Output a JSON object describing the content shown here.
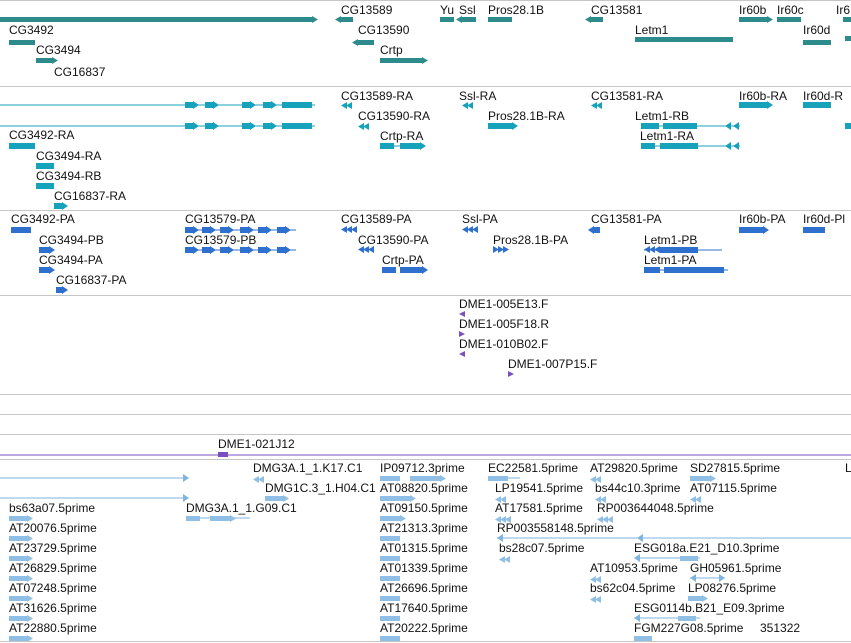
{
  "colors": {
    "gene": "#2e8b8b",
    "transcript": "#17a2bb",
    "protein": "#2f6fce",
    "est": "#7a4fc0",
    "cdna": "#8fbfe4",
    "cdna_line": "#7fb3e0",
    "divider": "#c6c6c6"
  },
  "tracks": {
    "genes": [
      "CG3492",
      "CG3494",
      "CG16837",
      "CG13589",
      "CG13590",
      "Crtp",
      "Yu",
      "Ssl",
      "Pros28.1B",
      "CG13581",
      "Letm1",
      "Ir60b",
      "Ir60c",
      "Ir60d",
      "Ir6"
    ],
    "transcripts": [
      "CG3492-RA",
      "CG3494-RA",
      "CG3494-RB",
      "CG16837-RA",
      "CG13589-RA",
      "CG13590-RA",
      "Crtp-RA",
      "Ssl-RA",
      "Pros28.1B-RA",
      "CG13581-RA",
      "Letm1-RB",
      "Letm1-RA",
      "Ir60b-RA",
      "Ir60d-R"
    ],
    "proteins": [
      "CG3492-PA",
      "CG3494-PB",
      "CG3494-PA",
      "CG16837-PA",
      "CG13579-PA",
      "CG13579-PB",
      "CG13589-PA",
      "CG13590-PA",
      "Crtp-PA",
      "Ssl-PA",
      "Pros28.1B-PA",
      "CG13581-PA",
      "Letm1-PB",
      "Letm1-PA",
      "Ir60b-PA",
      "Ir60d-Pl"
    ],
    "ests": [
      "DME1-005E13.F",
      "DME1-005F18.R",
      "DME1-010B02.F",
      "DME1-007P15.F"
    ],
    "clone": "DME1-021J12",
    "cdnas": [
      "DMG3A.1_1.K17.C1",
      "IP09712.3prime",
      "EC22581.5prime",
      "AT29820.5prime",
      "SD27815.5prime",
      "L",
      "DMG1C.3_1.H04.C1",
      "AT08820.5prime",
      "LP19541.5prime",
      "bs44c10.3prime",
      "AT07115.5prime",
      "bs63a07.5prime",
      "DMG3A.1_1.G09.C1",
      "AT09150.5prime",
      "AT17581.5prime",
      "RP003644048.5prime",
      "AT20076.5prime",
      "AT21313.3prime",
      "RP003558148.5prime",
      "AT23729.5prime",
      "AT01315.5prime",
      "bs28c07.5prime",
      "ESG018a.E21_D10.3prime",
      "AT26829.5prime",
      "AT01339.5prime",
      "AT10953.5prime",
      "GH05961.5prime",
      "AT07248.5prime",
      "AT26696.5prime",
      "bs62c04.5prime",
      "LP08276.5prime",
      "AT31626.5prime",
      "AT17640.5prime",
      "ESG0114b.B21_E09.3prime",
      "AT22880.5prime",
      "AT20222.5prime",
      "FGM227G08.5prime",
      "351322"
    ]
  }
}
